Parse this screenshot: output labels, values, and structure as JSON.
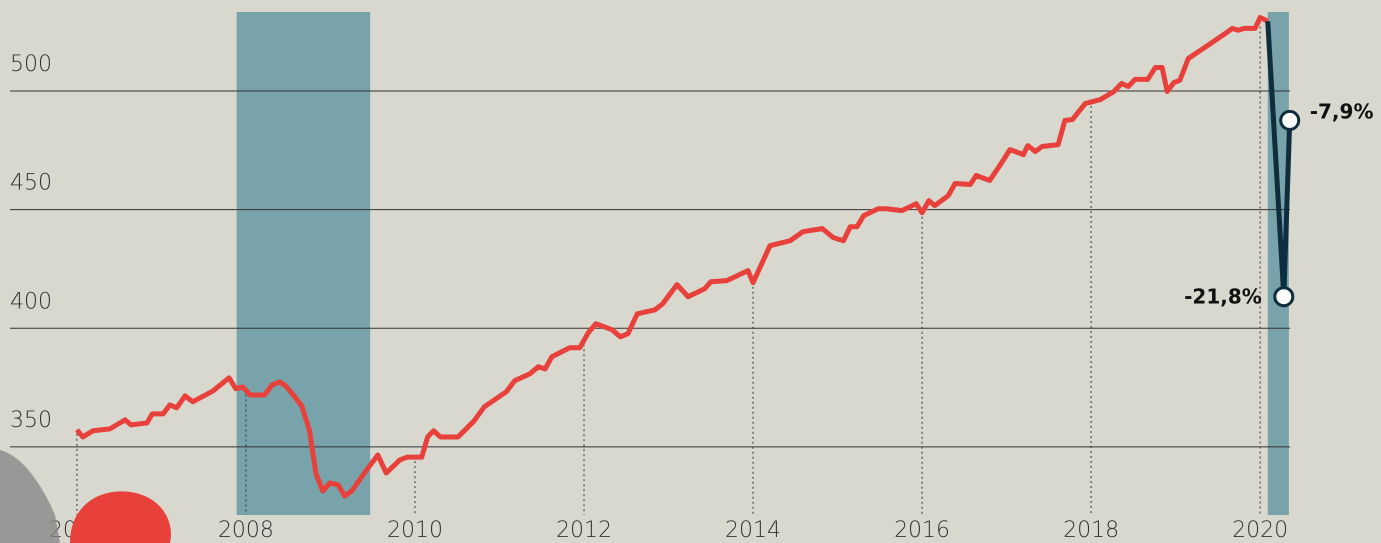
{
  "chart_data": {
    "type": "line",
    "x": [
      2006.0,
      2006.07,
      2006.19,
      2006.39,
      2006.57,
      2006.64,
      2006.83,
      2006.89,
      2007.02,
      2007.1,
      2007.18,
      2007.28,
      2007.37,
      2007.61,
      2007.8,
      2007.88,
      2007.96,
      2008.05,
      2008.22,
      2008.31,
      2008.4,
      2008.47,
      2008.56,
      2008.66,
      2008.75,
      2008.83,
      2008.91,
      2008.99,
      2009.09,
      2009.17,
      2009.25,
      2009.41,
      2009.56,
      2009.66,
      2009.82,
      2009.91,
      2010.08,
      2010.15,
      2010.22,
      2010.3,
      2010.51,
      2010.7,
      2010.82,
      2011.08,
      2011.18,
      2011.36,
      2011.46,
      2011.54,
      2011.62,
      2011.83,
      2011.95,
      2012.05,
      2012.14,
      2012.33,
      2012.43,
      2012.52,
      2012.63,
      2012.84,
      2012.93,
      2013.1,
      2013.23,
      2013.43,
      2013.5,
      2013.69,
      2013.94,
      2014.0,
      2014.2,
      2014.44,
      2014.59,
      2014.82,
      2014.95,
      2015.07,
      2015.15,
      2015.23,
      2015.31,
      2015.48,
      2015.57,
      2015.76,
      2015.93,
      2016.0,
      2016.08,
      2016.15,
      2016.31,
      2016.39,
      2016.57,
      2016.64,
      2016.8,
      2016.92,
      2017.04,
      2017.2,
      2017.25,
      2017.34,
      2017.42,
      2017.61,
      2017.69,
      2017.78,
      2017.93,
      2018.11,
      2018.27,
      2018.36,
      2018.44,
      2018.52,
      2018.67,
      2018.76,
      2018.84,
      2018.9,
      2018.98,
      2019.05,
      2019.15,
      2019.38,
      2019.59,
      2019.67,
      2019.74,
      2019.81,
      2019.94,
      2020.0,
      2020.09
    ],
    "series": [
      {
        "color": "#e8403a",
        "values": [
          357.2,
          354.2,
          356.8,
          357.6,
          361.4,
          359.3,
          360.1,
          363.9,
          363.9,
          367.7,
          366.5,
          371.5,
          369.0,
          373.6,
          379.1,
          374.5,
          375.3,
          371.9,
          371.9,
          376.2,
          377.4,
          375.7,
          371.9,
          367.3,
          357.2,
          338.6,
          331.4,
          334.8,
          334.0,
          329.3,
          331.4,
          339.4,
          346.6,
          339.0,
          344.5,
          345.7,
          345.7,
          354.2,
          356.8,
          354.2,
          354.2,
          361.0,
          366.9,
          373.2,
          377.9,
          380.8,
          383.8,
          382.9,
          388.0,
          391.8,
          391.8,
          398.1,
          401.9,
          399.4,
          396.4,
          397.7,
          406.1,
          407.8,
          410.3,
          418.4,
          413.3,
          416.7,
          419.6,
          420.1,
          424.3,
          419.2,
          434.8,
          436.9,
          440.7,
          442.0,
          438.2,
          436.9,
          442.8,
          442.8,
          447.5,
          450.4,
          450.4,
          449.6,
          452.5,
          448.7,
          453.8,
          451.7,
          455.9,
          461.0,
          460.6,
          464.4,
          462.3,
          468.6,
          475.3,
          473.2,
          477.0,
          474.5,
          476.6,
          477.4,
          487.6,
          488.0,
          494.7,
          496.4,
          499.8,
          503.2,
          501.9,
          504.9,
          504.9,
          509.9,
          509.9,
          499.8,
          503.6,
          504.5,
          513.7,
          519.2,
          524.3,
          526.4,
          525.6,
          526.4,
          526.4,
          531.0,
          529.4
        ]
      },
      {
        "color": "#0f2d3d",
        "x": [
          2020.09,
          2020.28,
          2020.35
        ],
        "values": [
          529.4,
          413.3,
          487.6
        ]
      }
    ],
    "annotations": [
      {
        "text": "-21,8%"
      },
      {
        "text": "-7,9%"
      }
    ],
    "bands": [
      [
        2007.89,
        2009.47
      ],
      [
        2020.09,
        2020.34
      ]
    ],
    "band_color": "#78a3ab",
    "xlim": [
      2005.09,
      2021.43
    ],
    "xticks": [
      2006,
      2008,
      2010,
      2012,
      2014,
      2016,
      2018,
      2020
    ],
    "ylim": [
      309.5,
      533.3
    ],
    "yticks": [
      350,
      400,
      450,
      500
    ],
    "grid": true
  }
}
